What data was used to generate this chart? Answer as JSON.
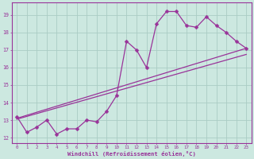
{
  "xlabel": "Windchill (Refroidissement éolien,°C)",
  "ylabel": "",
  "bg_color": "#cce8e0",
  "grid_color": "#aaccc4",
  "line_color": "#993399",
  "spine_color": "#993399",
  "xlim": [
    -0.5,
    23.5
  ],
  "ylim": [
    11.7,
    19.7
  ],
  "xticks": [
    0,
    1,
    2,
    3,
    4,
    5,
    6,
    7,
    8,
    9,
    10,
    11,
    12,
    13,
    14,
    15,
    16,
    17,
    18,
    19,
    20,
    21,
    22,
    23
  ],
  "yticks": [
    12,
    13,
    14,
    15,
    16,
    17,
    18,
    19
  ],
  "data_x": [
    0,
    1,
    2,
    3,
    4,
    5,
    6,
    7,
    8,
    9,
    10,
    11,
    12,
    13,
    14,
    15,
    16,
    17,
    18,
    19,
    20,
    21,
    22,
    23
  ],
  "data_y": [
    13.2,
    12.3,
    12.6,
    13.0,
    12.2,
    12.5,
    12.5,
    13.0,
    12.9,
    13.5,
    14.4,
    17.5,
    17.0,
    16.0,
    18.5,
    19.2,
    19.2,
    18.4,
    18.3,
    18.9,
    18.4,
    18.0,
    17.5,
    17.1
  ],
  "trend1_x": [
    0,
    23
  ],
  "trend1_y": [
    13.1,
    17.1
  ],
  "trend2_x": [
    0,
    23
  ],
  "trend2_y": [
    13.05,
    16.75
  ],
  "marker_size": 2.5,
  "linewidth": 0.9
}
